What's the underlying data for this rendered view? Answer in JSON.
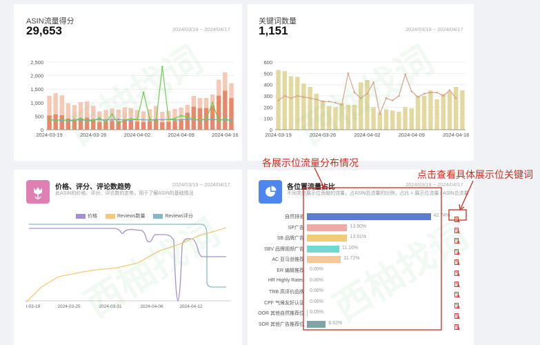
{
  "card1": {
    "title": "ASIN流量得分",
    "value": "29,653",
    "date_range": "2024/03/19 ~ 2024/04/17",
    "y_ticks": [
      "2,500",
      "2,000",
      "1,500",
      "1,000",
      "500",
      "0"
    ],
    "x_ticks": [
      "2024-03-19",
      "2024-03-26",
      "2024-04-02",
      "2024-04-09",
      "2024-04-16"
    ]
  },
  "card2": {
    "title": "关键词数量",
    "value": "1,151",
    "date_range": "2024/03/19 ~ 2024/04/17",
    "y_ticks": [
      "600",
      "500",
      "400",
      "300",
      "200",
      "100",
      "0"
    ],
    "x_ticks": [
      "2024-03-19",
      "2024-03-26",
      "2024-04-02",
      "2024-04-09",
      "2024-04-16"
    ]
  },
  "card3": {
    "title": "价格、评分、评论数趋势",
    "desc": "此ASIN的价格、评分、评论数的走势，用于了解ASIN的基础情况",
    "date_range": "2024/03/19 ~ 2024/04/17",
    "legend": [
      {
        "label": "价格",
        "color": "#a58fcc"
      },
      {
        "label": "Reviews数量",
        "color": "#f5c97a"
      },
      {
        "label": "Reviews评分",
        "color": "#86b8c4"
      }
    ],
    "x_ticks": [
      "I-03-19",
      "2024-03-25",
      "2024-03-31",
      "2024-04-06",
      "2024-04-12"
    ]
  },
  "card4": {
    "title": "各位置流量占比",
    "desc": "不同类型展示位贡献的流量，占ASIN总流量的比例，占比 = 展示位流量 / ASIN总流量",
    "date_range": "2024/03/19 ~ 2024/04/17",
    "rows": [
      {
        "label": "自然排名",
        "pct": "42.74%",
        "value": 42.74,
        "color": "#5b7bd5"
      },
      {
        "label": "SP广告",
        "pct": "13.90%",
        "value": 13.9,
        "color": "#f0aaa5"
      },
      {
        "label": "SB 品牌广告",
        "pct": "13.91%",
        "value": 13.91,
        "color": "#f0c97a"
      },
      {
        "label": "SBV 品牌视频广告",
        "pct": "11.16%",
        "value": 11.16,
        "color": "#6fd8cf"
      },
      {
        "label": "AC 亚马逊推荐",
        "pct": "11.72%",
        "value": 11.72,
        "color": "#f5c79a"
      },
      {
        "label": "ER 编辑推荐",
        "pct": "0.00%",
        "value": 0,
        "color": "#c0c0c0"
      },
      {
        "label": "HR Highly Rated",
        "pct": "0.00%",
        "value": 0,
        "color": "#c0c0c0"
      },
      {
        "label": "TRB 高评价品牌",
        "pct": "0.00%",
        "value": 0,
        "color": "#c0c0c0"
      },
      {
        "label": "CPF 气候友好认证",
        "pct": "0.00%",
        "value": 0,
        "color": "#c0c0c0"
      },
      {
        "label": "OOR 其他自然推荐位",
        "pct": "0.05%",
        "value": 0.05,
        "color": "#c0c0c0"
      },
      {
        "label": "SOR 其他广告推荐位",
        "pct": "6.52%",
        "value": 6.52,
        "color": "#7fa3a8"
      }
    ]
  },
  "annotations": {
    "left": "各展示位流量分布情况",
    "right": "点击查看具体展示位关键词"
  },
  "colors": {
    "bar_dark": "#e8886a",
    "bar_light": "#f5c9b5",
    "line_green": "#6bcf4a",
    "line_blue": "#6ea8dc",
    "kw_bar": "#e3d9a0",
    "kw_line": "#d8a48a",
    "accent_red": "#d2281e"
  }
}
